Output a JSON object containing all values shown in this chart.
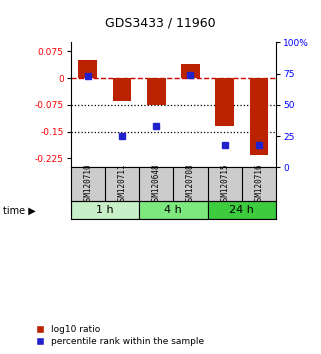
{
  "title": "GDS3433 / 11960",
  "samples": [
    "GSM120710",
    "GSM120711",
    "GSM120648",
    "GSM120708",
    "GSM120715",
    "GSM120716"
  ],
  "log10_ratio": [
    0.05,
    -0.065,
    -0.075,
    0.04,
    -0.135,
    -0.215
  ],
  "percentile_rank": [
    73,
    25,
    33,
    74,
    18,
    18
  ],
  "time_groups": [
    {
      "label": "1 h",
      "color": "#c8f0c8",
      "span": [
        0,
        2
      ]
    },
    {
      "label": "4 h",
      "color": "#7de87d",
      "span": [
        2,
        4
      ]
    },
    {
      "label": "24 h",
      "color": "#3dcc3d",
      "span": [
        4,
        6
      ]
    }
  ],
  "ylim_left": [
    -0.25,
    0.1
  ],
  "ylim_right": [
    0,
    100
  ],
  "yticks_left": [
    0.075,
    0,
    -0.075,
    -0.15,
    -0.225
  ],
  "yticks_right": [
    100,
    75,
    50,
    25,
    0
  ],
  "bar_color": "#bb2200",
  "dot_color": "#2222cc",
  "hline_color": "#cc0000",
  "dotted_line_color": "#000000",
  "bar_width": 0.55,
  "bg_color": "#ffffff",
  "label_bg_color": "#cccccc",
  "legend_red": "log10 ratio",
  "legend_blue": "percentile rank within the sample"
}
